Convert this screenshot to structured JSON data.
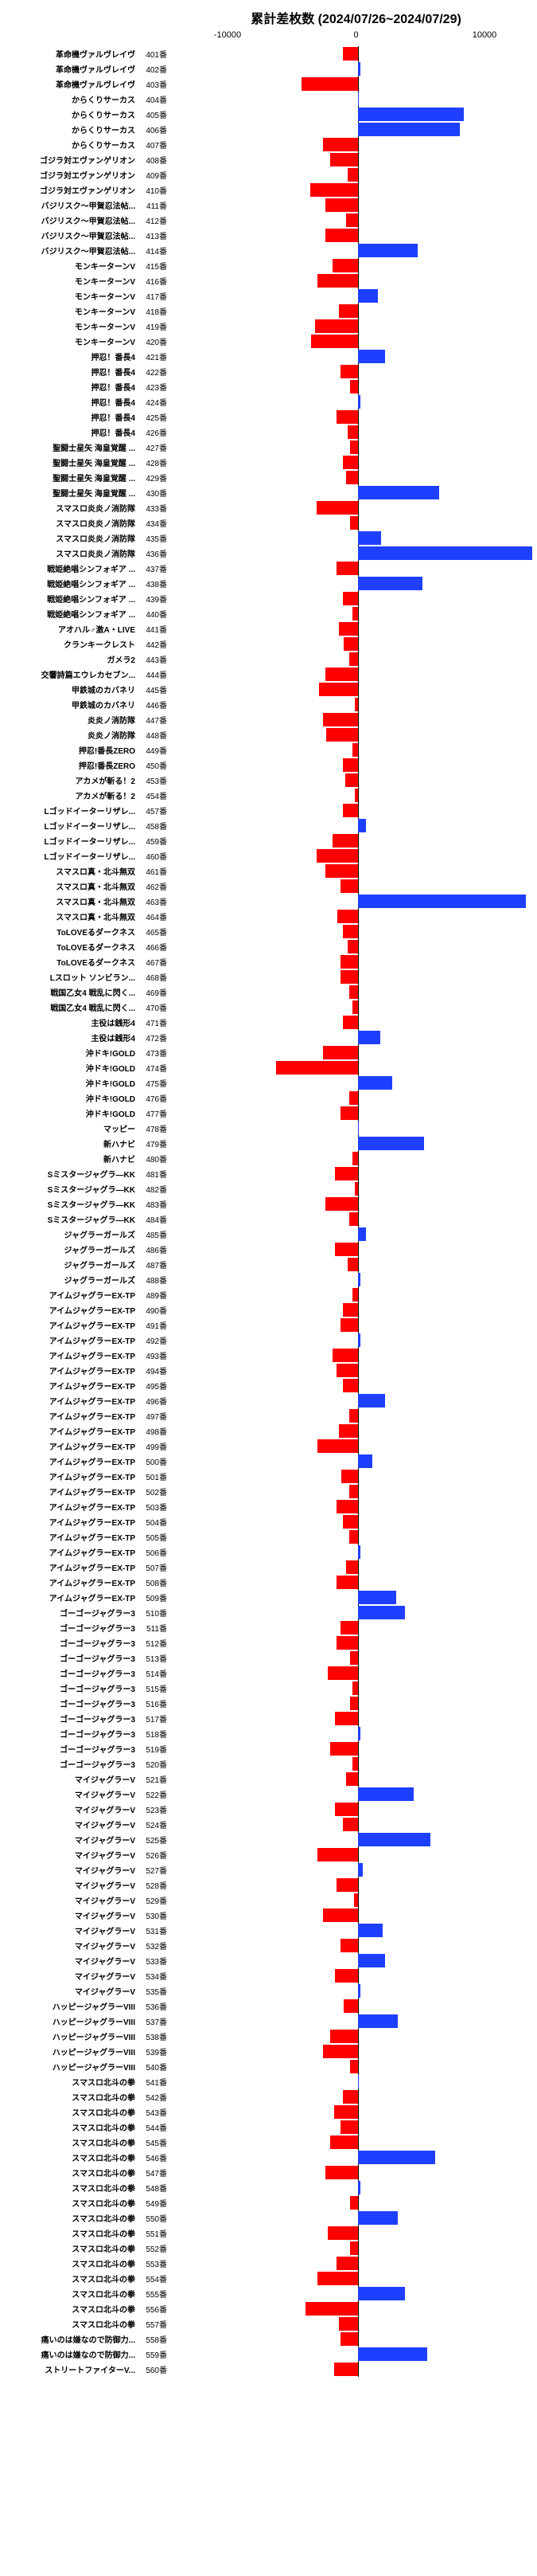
{
  "title": "累計差枚数 (2024/07/26~2024/07/29)",
  "axis_min": -10000,
  "axis_max": 10000,
  "tick_labels": [
    "-10000",
    "0",
    "10000"
  ],
  "pos_color": "#1f3fff",
  "neg_color": "#ff0000",
  "bg_color": "#ffffff",
  "font_size_label": 10,
  "font_size_title": 13,
  "rows": [
    {
      "label": "革命機ヴァルヴレイヴ",
      "num": "401番",
      "val": -1200
    },
    {
      "label": "革命機ヴァルヴレイヴ",
      "num": "402番",
      "val": 200
    },
    {
      "label": "革命機ヴァルヴレイヴ",
      "num": "403番",
      "val": -4500
    },
    {
      "label": "からくりサーカス",
      "num": "404番",
      "val": 100
    },
    {
      "label": "からくりサーカス",
      "num": "405番",
      "val": 8500
    },
    {
      "label": "からくりサーカス",
      "num": "406番",
      "val": 8200
    },
    {
      "label": "からくりサーカス",
      "num": "407番",
      "val": -2800
    },
    {
      "label": "ゴジラ対エヴァンゲリオン",
      "num": "408番",
      "val": -2200
    },
    {
      "label": "ゴジラ対エヴァンゲリオン",
      "num": "409番",
      "val": -800
    },
    {
      "label": "ゴジラ対エヴァンゲリオン",
      "num": "410番",
      "val": -3800
    },
    {
      "label": "バジリスク〜甲賀忍法帖...",
      "num": "411番",
      "val": -2600
    },
    {
      "label": "バジリスク〜甲賀忍法帖...",
      "num": "412番",
      "val": -900
    },
    {
      "label": "バジリスク〜甲賀忍法帖...",
      "num": "413番",
      "val": -2600
    },
    {
      "label": "バジリスク〜甲賀忍法帖...",
      "num": "414番",
      "val": 4800
    },
    {
      "label": "モンキーターンV",
      "num": "415番",
      "val": -2000
    },
    {
      "label": "モンキーターンV",
      "num": "416番",
      "val": -3200
    },
    {
      "label": "モンキーターンV",
      "num": "417番",
      "val": 1600
    },
    {
      "label": "モンキーターンV",
      "num": "418番",
      "val": -1500
    },
    {
      "label": "モンキーターンV",
      "num": "419番",
      "val": -3400
    },
    {
      "label": "モンキーターンV",
      "num": "420番",
      "val": -3700
    },
    {
      "label": "押忍！番長4",
      "num": "421番",
      "val": 2200
    },
    {
      "label": "押忍！番長4",
      "num": "422番",
      "val": -1400
    },
    {
      "label": "押忍！番長4",
      "num": "423番",
      "val": -600
    },
    {
      "label": "押忍！番長4",
      "num": "424番",
      "val": 200
    },
    {
      "label": "押忍！番長4",
      "num": "425番",
      "val": -1700
    },
    {
      "label": "押忍！番長4",
      "num": "426番",
      "val": -800
    },
    {
      "label": "聖闘士星矢 海皇覚醒 ...",
      "num": "427番",
      "val": -600
    },
    {
      "label": "聖闘士星矢 海皇覚醒 ...",
      "num": "428番",
      "val": -1200
    },
    {
      "label": "聖闘士星矢 海皇覚醒 ...",
      "num": "429番",
      "val": -900
    },
    {
      "label": "聖闘士星矢 海皇覚醒 ...",
      "num": "430番",
      "val": 6500
    },
    {
      "label": "スマスロ炎炎ノ消防隊",
      "num": "433番",
      "val": -3300
    },
    {
      "label": "スマスロ炎炎ノ消防隊",
      "num": "434番",
      "val": -600
    },
    {
      "label": "スマスロ炎炎ノ消防隊",
      "num": "435番",
      "val": 1900
    },
    {
      "label": "スマスロ炎炎ノ消防隊",
      "num": "436番",
      "val": 14000
    },
    {
      "label": "戦姫絶唱シンフォギア ...",
      "num": "437番",
      "val": -1700
    },
    {
      "label": "戦姫絶唱シンフォギア ...",
      "num": "438番",
      "val": 5200
    },
    {
      "label": "戦姫絶唱シンフォギア ...",
      "num": "439番",
      "val": -1200
    },
    {
      "label": "戦姫絶唱シンフォギア ...",
      "num": "440番",
      "val": -400
    },
    {
      "label": "アオハル♂激A・LIVE",
      "num": "441番",
      "val": -1500
    },
    {
      "label": "クランキークレスト",
      "num": "442番",
      "val": -1100
    },
    {
      "label": "ガメラ2",
      "num": "443番",
      "val": -700
    },
    {
      "label": "交響詩篇エウレカセブン...",
      "num": "444番",
      "val": -2600
    },
    {
      "label": "甲鉄城のカバネリ",
      "num": "445番",
      "val": -3100
    },
    {
      "label": "甲鉄城のカバネリ",
      "num": "446番",
      "val": -200
    },
    {
      "label": "炎炎ノ消防隊",
      "num": "447番",
      "val": -2800
    },
    {
      "label": "炎炎ノ消防隊",
      "num": "448番",
      "val": -2500
    },
    {
      "label": "押忍!番長ZERO",
      "num": "449番",
      "val": -400
    },
    {
      "label": "押忍!番長ZERO",
      "num": "450番",
      "val": -1200
    },
    {
      "label": "アカメが斬る！2",
      "num": "453番",
      "val": -1000
    },
    {
      "label": "アカメが斬る！2",
      "num": "454番",
      "val": -200
    },
    {
      "label": "Lゴッドイーターリザレ...",
      "num": "457番",
      "val": -1200
    },
    {
      "label": "Lゴッドイーターリザレ...",
      "num": "458番",
      "val": 700
    },
    {
      "label": "Lゴッドイーターリザレ...",
      "num": "459番",
      "val": -2000
    },
    {
      "label": "Lゴッドイーターリザレ...",
      "num": "460番",
      "val": -3300
    },
    {
      "label": "スマスロ真・北斗無双",
      "num": "461番",
      "val": -2600
    },
    {
      "label": "スマスロ真・北斗無双",
      "num": "462番",
      "val": -1400
    },
    {
      "label": "スマスロ真・北斗無双",
      "num": "463番",
      "val": 13500
    },
    {
      "label": "スマスロ真・北斗無双",
      "num": "464番",
      "val": -1600
    },
    {
      "label": "ToLOVEるダークネス",
      "num": "465番",
      "val": -1200
    },
    {
      "label": "ToLOVEるダークネス",
      "num": "466番",
      "val": -800
    },
    {
      "label": "ToLOVEるダークネス",
      "num": "467番",
      "val": -1400
    },
    {
      "label": "Lスロット ソンビラン...",
      "num": "468番",
      "val": -1400
    },
    {
      "label": "戦国乙女4 戦乱に閃く...",
      "num": "469番",
      "val": -700
    },
    {
      "label": "戦国乙女4 戦乱に閃く...",
      "num": "470番",
      "val": -400
    },
    {
      "label": "主役は銭形4",
      "num": "471番",
      "val": -1200
    },
    {
      "label": "主役は銭形4",
      "num": "472番",
      "val": 1800
    },
    {
      "label": "沖ドキ!GOLD",
      "num": "473番",
      "val": -2800
    },
    {
      "label": "沖ドキ!GOLD",
      "num": "474番",
      "val": -6500
    },
    {
      "label": "沖ドキ!GOLD",
      "num": "475番",
      "val": 2800
    },
    {
      "label": "沖ドキ!GOLD",
      "num": "476番",
      "val": -700
    },
    {
      "label": "沖ドキ!GOLD",
      "num": "477番",
      "val": -1400
    },
    {
      "label": "マッピー",
      "num": "478番",
      "val": 100
    },
    {
      "label": "新ハナビ",
      "num": "479番",
      "val": 5300
    },
    {
      "label": "新ハナビ",
      "num": "480番",
      "val": -400
    },
    {
      "label": "Sミスタージャグラ―KK",
      "num": "481番",
      "val": -1800
    },
    {
      "label": "Sミスタージャグラ―KK",
      "num": "482番",
      "val": -200
    },
    {
      "label": "Sミスタージャグラ―KK",
      "num": "483番",
      "val": -2600
    },
    {
      "label": "Sミスタージャグラ―KK",
      "num": "484番",
      "val": -700
    },
    {
      "label": "ジャグラーガールズ",
      "num": "485番",
      "val": 700
    },
    {
      "label": "ジャグラーガールズ",
      "num": "486番",
      "val": -1800
    },
    {
      "label": "ジャグラーガールズ",
      "num": "487番",
      "val": -800
    },
    {
      "label": "ジャグラーガールズ",
      "num": "488番",
      "val": 200
    },
    {
      "label": "アイムジャグラーEX-TP",
      "num": "489番",
      "val": -400
    },
    {
      "label": "アイムジャグラーEX-TP",
      "num": "490番",
      "val": -1200
    },
    {
      "label": "アイムジャグラーEX-TP",
      "num": "491番",
      "val": -1400
    },
    {
      "label": "アイムジャグラーEX-TP",
      "num": "492番",
      "val": 200
    },
    {
      "label": "アイムジャグラーEX-TP",
      "num": "493番",
      "val": -2000
    },
    {
      "label": "アイムジャグラーEX-TP",
      "num": "494番",
      "val": -1700
    },
    {
      "label": "アイムジャグラーEX-TP",
      "num": "495番",
      "val": -1200
    },
    {
      "label": "アイムジャグラーEX-TP",
      "num": "496番",
      "val": 2200
    },
    {
      "label": "アイムジャグラーEX-TP",
      "num": "497番",
      "val": -700
    },
    {
      "label": "アイムジャグラーEX-TP",
      "num": "498番",
      "val": -1500
    },
    {
      "label": "アイムジャグラーEX-TP",
      "num": "499番",
      "val": -3200
    },
    {
      "label": "アイムジャグラーEX-TP",
      "num": "500番",
      "val": 1200
    },
    {
      "label": "アイムジャグラーEX-TP",
      "num": "501番",
      "val": -1300
    },
    {
      "label": "アイムジャグラーEX-TP",
      "num": "502番",
      "val": -700
    },
    {
      "label": "アイムジャグラーEX-TP",
      "num": "503番",
      "val": -1700
    },
    {
      "label": "アイムジャグラーEX-TP",
      "num": "504番",
      "val": -1200
    },
    {
      "label": "アイムジャグラーEX-TP",
      "num": "505番",
      "val": -700
    },
    {
      "label": "アイムジャグラーEX-TP",
      "num": "506番",
      "val": 200
    },
    {
      "label": "アイムジャグラーEX-TP",
      "num": "507番",
      "val": -900
    },
    {
      "label": "アイムジャグラーEX-TP",
      "num": "508番",
      "val": -1700
    },
    {
      "label": "アイムジャグラーEX-TP",
      "num": "509番",
      "val": 3100
    },
    {
      "label": "ゴーゴージャグラー3",
      "num": "510番",
      "val": 3800
    },
    {
      "label": "ゴーゴージャグラー3",
      "num": "511番",
      "val": -1400
    },
    {
      "label": "ゴーゴージャグラー3",
      "num": "512番",
      "val": -1700
    },
    {
      "label": "ゴーゴージャグラー3",
      "num": "513番",
      "val": -600
    },
    {
      "label": "ゴーゴージャグラー3",
      "num": "514番",
      "val": -2400
    },
    {
      "label": "ゴーゴージャグラー3",
      "num": "515番",
      "val": -400
    },
    {
      "label": "ゴーゴージャグラー3",
      "num": "516番",
      "val": -600
    },
    {
      "label": "ゴーゴージャグラー3",
      "num": "517番",
      "val": -1800
    },
    {
      "label": "ゴーゴージャグラー3",
      "num": "518番",
      "val": 200
    },
    {
      "label": "ゴーゴージャグラー3",
      "num": "519番",
      "val": -2200
    },
    {
      "label": "ゴーゴージャグラー3",
      "num": "520番",
      "val": -400
    },
    {
      "label": "マイジャグラーV",
      "num": "521番",
      "val": -900
    },
    {
      "label": "マイジャグラーV",
      "num": "522番",
      "val": 4500
    },
    {
      "label": "マイジャグラーV",
      "num": "523番",
      "val": -1800
    },
    {
      "label": "マイジャグラーV",
      "num": "524番",
      "val": -1200
    },
    {
      "label": "マイジャグラーV",
      "num": "525番",
      "val": 5800
    },
    {
      "label": "マイジャグラーV",
      "num": "526番",
      "val": -3200
    },
    {
      "label": "マイジャグラーV",
      "num": "527番",
      "val": 400
    },
    {
      "label": "マイジャグラーV",
      "num": "528番",
      "val": -1700
    },
    {
      "label": "マイジャグラーV",
      "num": "529番",
      "val": -300
    },
    {
      "label": "マイジャグラーV",
      "num": "530番",
      "val": -2800
    },
    {
      "label": "マイジャグラーV",
      "num": "531番",
      "val": 2000
    },
    {
      "label": "マイジャグラーV",
      "num": "532番",
      "val": -1400
    },
    {
      "label": "マイジャグラーV",
      "num": "533番",
      "val": 2200
    },
    {
      "label": "マイジャグラーV",
      "num": "534番",
      "val": -1800
    },
    {
      "label": "マイジャグラーV",
      "num": "535番",
      "val": 200
    },
    {
      "label": "ハッピージャグラーVIII",
      "num": "536番",
      "val": -1100
    },
    {
      "label": "ハッピージャグラーVIII",
      "num": "537番",
      "val": 3200
    },
    {
      "label": "ハッピージャグラーVIII",
      "num": "538番",
      "val": -2200
    },
    {
      "label": "ハッピージャグラーVIII",
      "num": "539番",
      "val": -2800
    },
    {
      "label": "ハッピージャグラーVIII",
      "num": "540番",
      "val": -600
    },
    {
      "label": "スマスロ北斗の拳",
      "num": "541番",
      "val": 100
    },
    {
      "label": "スマスロ北斗の拳",
      "num": "542番",
      "val": -1200
    },
    {
      "label": "スマスロ北斗の拳",
      "num": "543番",
      "val": -1900
    },
    {
      "label": "スマスロ北斗の拳",
      "num": "544番",
      "val": -1400
    },
    {
      "label": "スマスロ北斗の拳",
      "num": "545番",
      "val": -2200
    },
    {
      "label": "スマスロ北斗の拳",
      "num": "546番",
      "val": 6200
    },
    {
      "label": "スマスロ北斗の拳",
      "num": "547番",
      "val": -2600
    },
    {
      "label": "スマスロ北斗の拳",
      "num": "548番",
      "val": 200
    },
    {
      "label": "スマスロ北斗の拳",
      "num": "549番",
      "val": -600
    },
    {
      "label": "スマスロ北斗の拳",
      "num": "550番",
      "val": 3200
    },
    {
      "label": "スマスロ北斗の拳",
      "num": "551番",
      "val": -2400
    },
    {
      "label": "スマスロ北斗の拳",
      "num": "552番",
      "val": -600
    },
    {
      "label": "スマスロ北斗の拳",
      "num": "553番",
      "val": -1700
    },
    {
      "label": "スマスロ北斗の拳",
      "num": "554番",
      "val": -3200
    },
    {
      "label": "スマスロ北斗の拳",
      "num": "555番",
      "val": 3800
    },
    {
      "label": "スマスロ北斗の拳",
      "num": "556番",
      "val": -4200
    },
    {
      "label": "スマスロ北斗の拳",
      "num": "557番",
      "val": -1500
    },
    {
      "label": "痛いのは嫌なので防御力...",
      "num": "558番",
      "val": -1400
    },
    {
      "label": "痛いのは嫌なので防御力...",
      "num": "559番",
      "val": 5600
    },
    {
      "label": "ストリートファイターV...",
      "num": "560番",
      "val": -1900
    }
  ]
}
